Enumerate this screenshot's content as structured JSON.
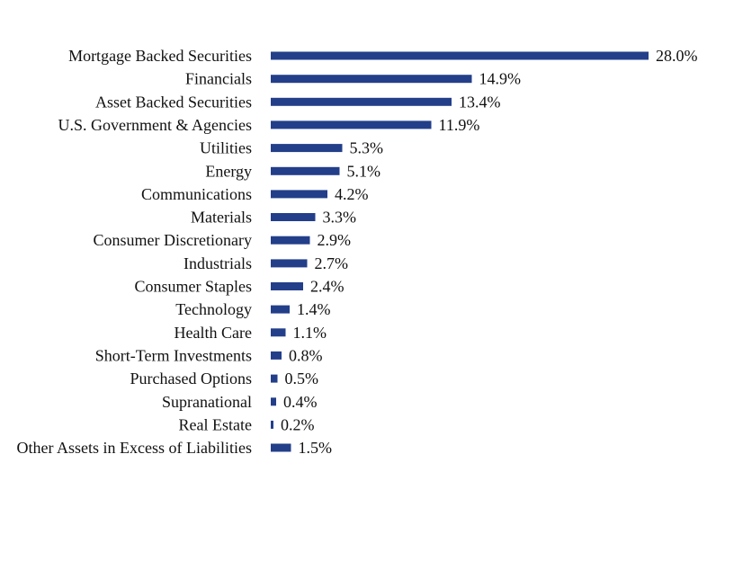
{
  "chart_data": {
    "type": "bar",
    "orientation": "horizontal",
    "bar_color": "#233F8A",
    "categories": [
      "Mortgage Backed Securities",
      "Financials",
      "Asset Backed Securities",
      "U.S. Government & Agencies",
      "Utilities",
      "Energy",
      "Communications",
      "Materials",
      "Consumer Discretionary",
      "Industrials",
      "Consumer Staples",
      "Technology",
      "Health Care",
      "Short-Term Investments",
      "Purchased Options",
      "Supranational",
      "Real Estate",
      "Other Assets in Excess of Liabilities"
    ],
    "values": [
      28.0,
      14.9,
      13.4,
      11.9,
      5.3,
      5.1,
      4.2,
      3.3,
      2.9,
      2.7,
      2.4,
      1.4,
      1.1,
      0.8,
      0.5,
      0.4,
      0.2,
      1.5
    ],
    "value_labels": [
      "28.0%",
      "14.9%",
      "13.4%",
      "11.9%",
      "5.3%",
      "5.1%",
      "4.2%",
      "3.3%",
      "2.9%",
      "2.7%",
      "2.4%",
      "1.4%",
      "1.1%",
      "0.8%",
      "0.5%",
      "0.4%",
      "0.2%",
      "1.5%"
    ],
    "unit": "%",
    "grid": false,
    "legend": "none"
  }
}
